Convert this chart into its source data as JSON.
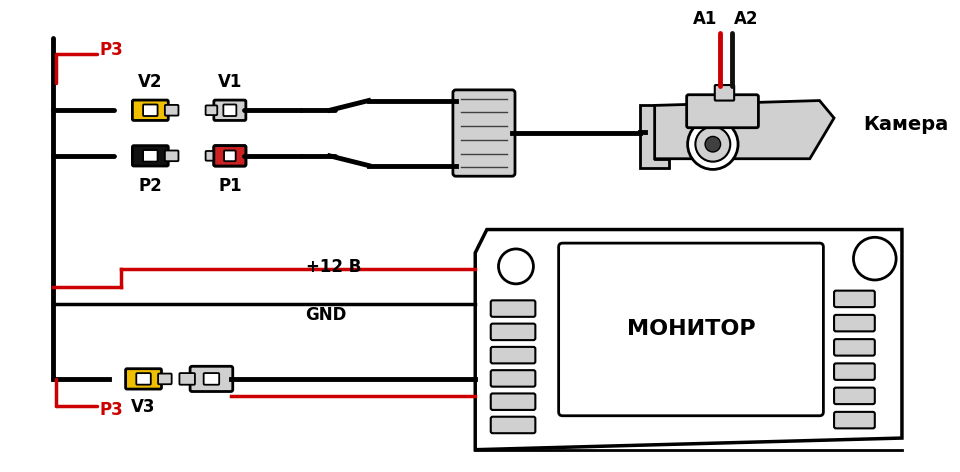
{
  "bg_color": "#ffffff",
  "line_color": "#000000",
  "red_color": "#cc0000",
  "yellow_color": "#f0c000",
  "gray_color": "#b0b0b0",
  "light_gray": "#d0d0d0",
  "dark_gray": "#404040",
  "labels": {
    "P3_top": "P3",
    "P3_bot": "P3",
    "V1": "V1",
    "V2": "V2",
    "P1": "P1",
    "P2": "P2",
    "V3": "V3",
    "A1": "A1",
    "A2": "A2",
    "camera": "Камера",
    "plus12": "+12 В",
    "gnd": "GND",
    "monitor": "МОНИТОР"
  },
  "figsize": [
    9.6,
    4.72
  ],
  "dpi": 100
}
